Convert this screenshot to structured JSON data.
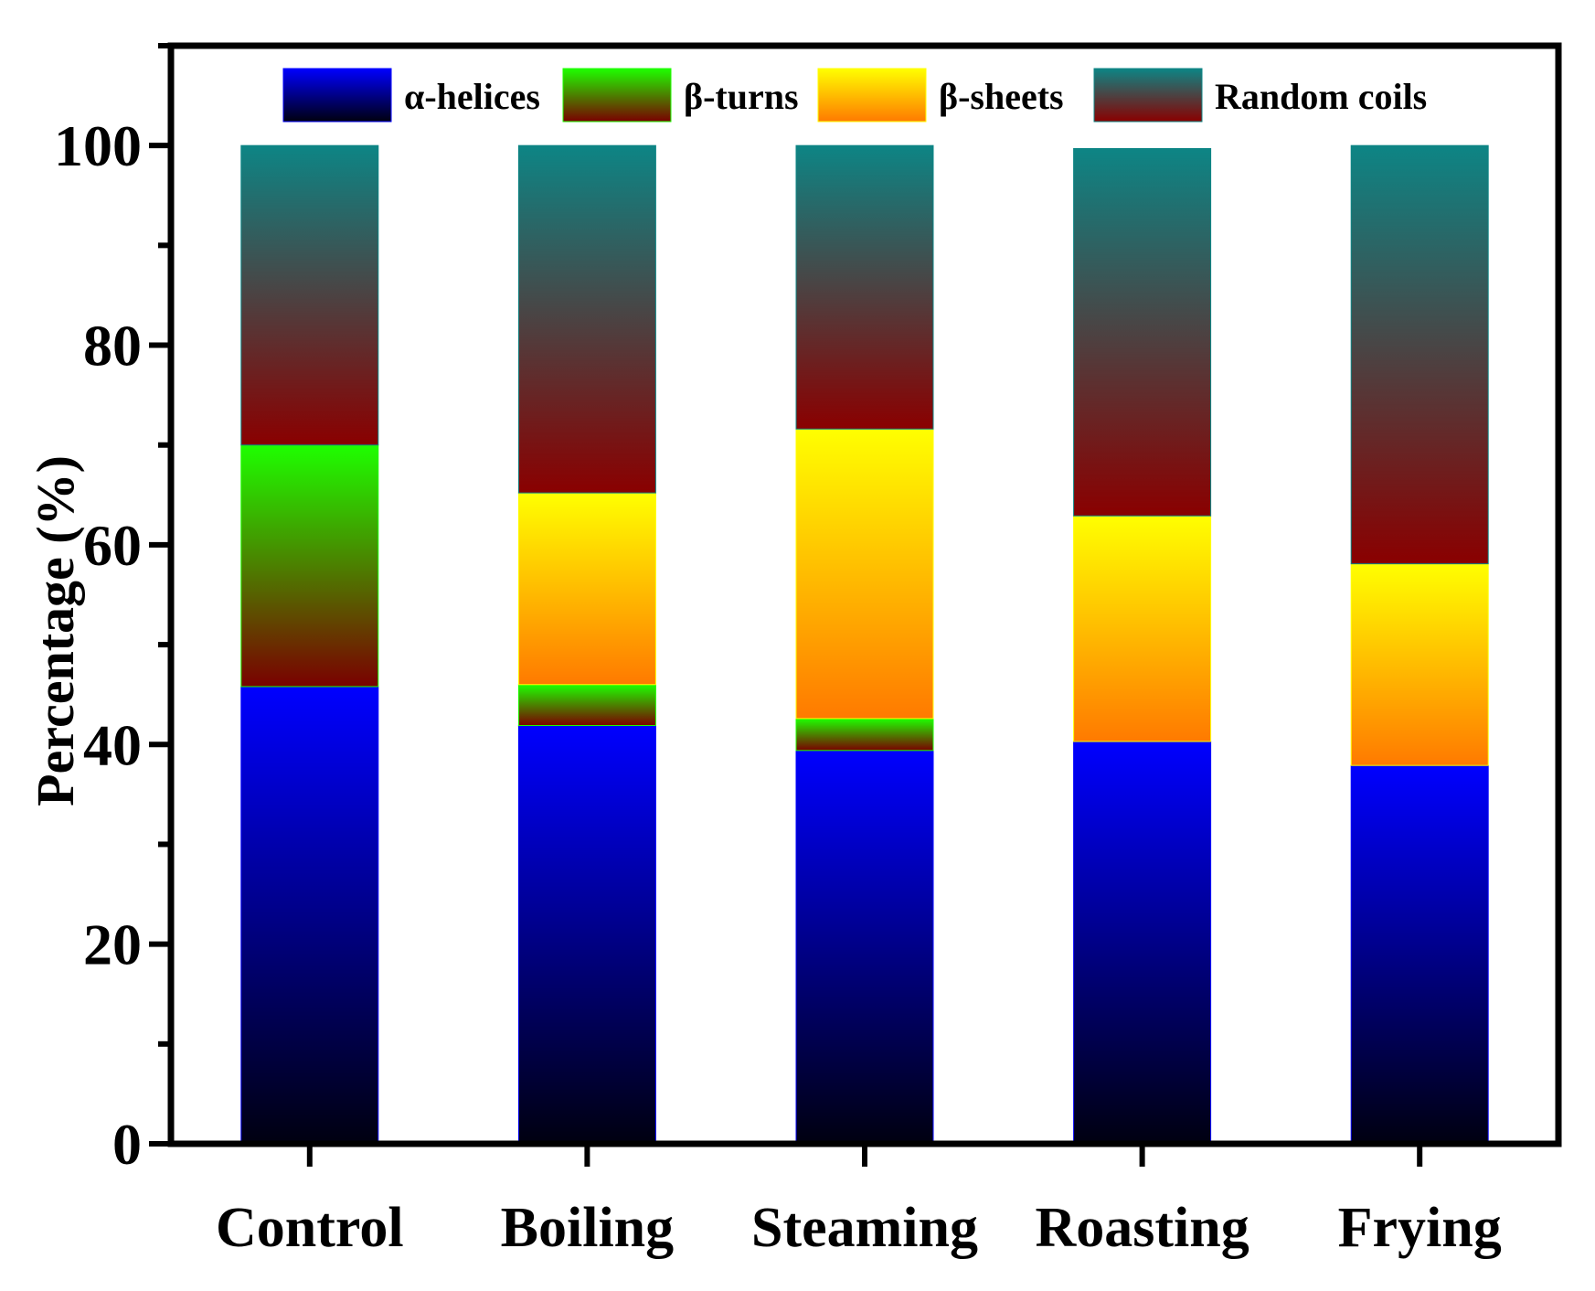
{
  "chart_data": {
    "type": "bar",
    "stacked": true,
    "title": "",
    "xlabel": "",
    "ylabel": "Percentage (%)",
    "ylim": [
      0,
      110
    ],
    "yticks": [
      "0",
      "20",
      "40",
      "60",
      "80",
      "100"
    ],
    "categories": [
      "Control",
      "Boiling",
      "Steaming",
      "Roasting",
      "Frying"
    ],
    "series": [
      {
        "name": "α-helices",
        "key": "alpha",
        "values": [
          45.8,
          41.9,
          39.4,
          40.3,
          37.9
        ],
        "color_top": "#0000ff",
        "color_bottom": "#000010"
      },
      {
        "name": "β-turns",
        "key": "turns",
        "values": [
          24.2,
          4.1,
          3.2,
          0.0,
          0.0
        ],
        "color_top": "#1eff00",
        "color_bottom": "#7a0000"
      },
      {
        "name": "β-sheets",
        "key": "sheets",
        "values": [
          0.0,
          19.2,
          29.0,
          22.6,
          20.2
        ],
        "color_top": "#ffff00",
        "color_bottom": "#ff7a00"
      },
      {
        "name": "Random coils",
        "key": "coils",
        "values": [
          30.0,
          34.8,
          28.4,
          36.8,
          41.9
        ],
        "color_top": "#0d8585",
        "color_bottom": "#8a0000"
      }
    ],
    "legend_position": "top-inside",
    "grid": false
  }
}
